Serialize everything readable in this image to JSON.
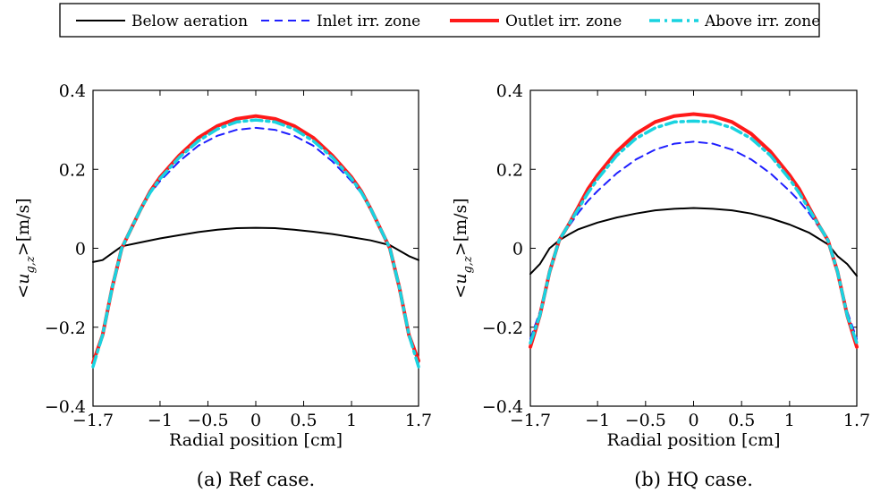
{
  "legend": {
    "entries": [
      {
        "label": "Below aeration",
        "color": "#000000",
        "dash": "solid",
        "width": 2
      },
      {
        "label": "Inlet irr. zone",
        "color": "#1f1fff",
        "dash": "dashed",
        "width": 2
      },
      {
        "label": "Outlet irr. zone",
        "color": "#ff1a1a",
        "dash": "solid",
        "width": 4
      },
      {
        "label": "Above irr. zone",
        "color": "#19d3e0",
        "dash": "dashdot",
        "width": 3.5
      }
    ]
  },
  "chart_data": [
    {
      "type": "line",
      "caption": "(a) Ref case.",
      "xlabel": "Radial position [cm]",
      "ylabel_prefix": "<u",
      "ylabel_sub": "g,z",
      "ylabel_suffix": ">[m/s]",
      "xlim": [
        -1.7,
        1.7
      ],
      "ylim": [
        -0.4,
        0.4
      ],
      "xticks": [
        -1.7,
        -1,
        -0.5,
        0,
        0.5,
        1,
        1.7
      ],
      "xtick_labels": [
        "−1.7",
        "−1",
        "−0.5",
        "0",
        "0.5",
        "1",
        "1.7"
      ],
      "yticks": [
        -0.4,
        -0.2,
        0,
        0.2,
        0.4
      ],
      "ytick_labels": [
        "−0.4",
        "−0.2",
        "0",
        "0.2",
        "0.4"
      ],
      "series": [
        {
          "name": "Below aeration",
          "x": [
            -1.7,
            -1.6,
            -1.4,
            -1.2,
            -1.0,
            -0.8,
            -0.6,
            -0.4,
            -0.2,
            0,
            0.2,
            0.4,
            0.6,
            0.8,
            1.0,
            1.2,
            1.4,
            1.6,
            1.7
          ],
          "y": [
            -0.035,
            -0.03,
            0.005,
            0.015,
            0.025,
            0.033,
            0.041,
            0.047,
            0.051,
            0.052,
            0.051,
            0.047,
            0.042,
            0.036,
            0.028,
            0.02,
            0.008,
            -0.02,
            -0.03
          ]
        },
        {
          "name": "Inlet irr. zone",
          "x": [
            -1.7,
            -1.6,
            -1.5,
            -1.4,
            -1.3,
            -1.2,
            -1.1,
            -1.0,
            -0.8,
            -0.6,
            -0.4,
            -0.2,
            0,
            0.2,
            0.4,
            0.6,
            0.8,
            1.0,
            1.1,
            1.2,
            1.3,
            1.4,
            1.5,
            1.6,
            1.7
          ],
          "y": [
            -0.29,
            -0.22,
            -0.1,
            0.0,
            0.05,
            0.1,
            0.14,
            0.17,
            0.22,
            0.26,
            0.285,
            0.3,
            0.305,
            0.3,
            0.285,
            0.26,
            0.22,
            0.17,
            0.14,
            0.1,
            0.05,
            0.0,
            -0.1,
            -0.22,
            -0.29
          ]
        },
        {
          "name": "Outlet irr. zone",
          "x": [
            -1.7,
            -1.6,
            -1.5,
            -1.4,
            -1.3,
            -1.2,
            -1.1,
            -1.0,
            -0.8,
            -0.6,
            -0.4,
            -0.2,
            0,
            0.2,
            0.4,
            0.6,
            0.8,
            1.0,
            1.1,
            1.2,
            1.3,
            1.4,
            1.5,
            1.6,
            1.7
          ],
          "y": [
            -0.29,
            -0.22,
            -0.1,
            0.0,
            0.05,
            0.1,
            0.145,
            0.18,
            0.235,
            0.28,
            0.31,
            0.328,
            0.335,
            0.328,
            0.31,
            0.28,
            0.235,
            0.18,
            0.145,
            0.1,
            0.05,
            0.0,
            -0.1,
            -0.22,
            -0.285
          ]
        },
        {
          "name": "Above irr. zone",
          "x": [
            -1.7,
            -1.6,
            -1.5,
            -1.4,
            -1.3,
            -1.2,
            -1.1,
            -1.0,
            -0.8,
            -0.6,
            -0.4,
            -0.2,
            0,
            0.2,
            0.4,
            0.6,
            0.8,
            1.0,
            1.1,
            1.2,
            1.3,
            1.4,
            1.5,
            1.6,
            1.7
          ],
          "y": [
            -0.3,
            -0.22,
            -0.1,
            0.0,
            0.05,
            0.1,
            0.142,
            0.176,
            0.23,
            0.272,
            0.302,
            0.32,
            0.325,
            0.32,
            0.302,
            0.272,
            0.23,
            0.176,
            0.142,
            0.1,
            0.05,
            0.0,
            -0.1,
            -0.22,
            -0.3
          ]
        }
      ]
    },
    {
      "type": "line",
      "caption": "(b) HQ case.",
      "xlabel": "Radial position [cm]",
      "ylabel_prefix": "<u",
      "ylabel_sub": "g,z",
      "ylabel_suffix": ">[m/s]",
      "xlim": [
        -1.7,
        1.7
      ],
      "ylim": [
        -0.4,
        0.4
      ],
      "xticks": [
        -1.7,
        -1,
        -0.5,
        0,
        0.5,
        1,
        1.7
      ],
      "xtick_labels": [
        "−1.7",
        "−1",
        "−0.5",
        "0",
        "0.5",
        "1",
        "1.7"
      ],
      "yticks": [
        -0.4,
        -0.2,
        0,
        0.2,
        0.4
      ],
      "ytick_labels": [
        "−0.4",
        "−0.2",
        "0",
        "0.2",
        "0.4"
      ],
      "series": [
        {
          "name": "Below aeration",
          "x": [
            -1.7,
            -1.6,
            -1.5,
            -1.4,
            -1.3,
            -1.2,
            -1.0,
            -0.8,
            -0.6,
            -0.4,
            -0.2,
            0,
            0.2,
            0.4,
            0.6,
            0.8,
            1.0,
            1.2,
            1.3,
            1.4,
            1.5,
            1.6,
            1.7
          ],
          "y": [
            -0.065,
            -0.04,
            0.0,
            0.02,
            0.035,
            0.048,
            0.065,
            0.078,
            0.088,
            0.096,
            0.1,
            0.102,
            0.1,
            0.096,
            0.088,
            0.076,
            0.06,
            0.04,
            0.025,
            0.01,
            -0.02,
            -0.04,
            -0.07
          ]
        },
        {
          "name": "Inlet irr. zone",
          "x": [
            -1.7,
            -1.6,
            -1.5,
            -1.4,
            -1.3,
            -1.2,
            -1.1,
            -1.0,
            -0.8,
            -0.6,
            -0.4,
            -0.2,
            0,
            0.2,
            0.4,
            0.6,
            0.8,
            1.0,
            1.1,
            1.2,
            1.3,
            1.4,
            1.5,
            1.6,
            1.7
          ],
          "y": [
            -0.23,
            -0.16,
            -0.06,
            0.02,
            0.055,
            0.09,
            0.12,
            0.145,
            0.19,
            0.225,
            0.25,
            0.265,
            0.27,
            0.265,
            0.25,
            0.225,
            0.19,
            0.145,
            0.12,
            0.09,
            0.055,
            0.02,
            -0.06,
            -0.16,
            -0.23
          ]
        },
        {
          "name": "Outlet irr. zone",
          "x": [
            -1.7,
            -1.6,
            -1.5,
            -1.4,
            -1.3,
            -1.2,
            -1.1,
            -1.0,
            -0.8,
            -0.6,
            -0.4,
            -0.2,
            0,
            0.2,
            0.4,
            0.6,
            0.8,
            1.0,
            1.1,
            1.2,
            1.3,
            1.4,
            1.5,
            1.6,
            1.7
          ],
          "y": [
            -0.25,
            -0.17,
            -0.06,
            0.02,
            0.06,
            0.105,
            0.15,
            0.185,
            0.245,
            0.29,
            0.32,
            0.335,
            0.34,
            0.335,
            0.32,
            0.29,
            0.245,
            0.185,
            0.15,
            0.105,
            0.06,
            0.02,
            -0.06,
            -0.17,
            -0.25
          ]
        },
        {
          "name": "Above irr. zone",
          "x": [
            -1.7,
            -1.6,
            -1.5,
            -1.4,
            -1.3,
            -1.2,
            -1.1,
            -1.0,
            -0.8,
            -0.6,
            -0.4,
            -0.2,
            0,
            0.2,
            0.4,
            0.6,
            0.8,
            1.0,
            1.1,
            1.2,
            1.3,
            1.4,
            1.5,
            1.6,
            1.7
          ],
          "y": [
            -0.24,
            -0.17,
            -0.06,
            0.02,
            0.06,
            0.1,
            0.14,
            0.175,
            0.235,
            0.278,
            0.305,
            0.32,
            0.322,
            0.32,
            0.305,
            0.278,
            0.235,
            0.175,
            0.14,
            0.1,
            0.06,
            0.02,
            -0.06,
            -0.17,
            -0.24
          ]
        }
      ]
    }
  ]
}
